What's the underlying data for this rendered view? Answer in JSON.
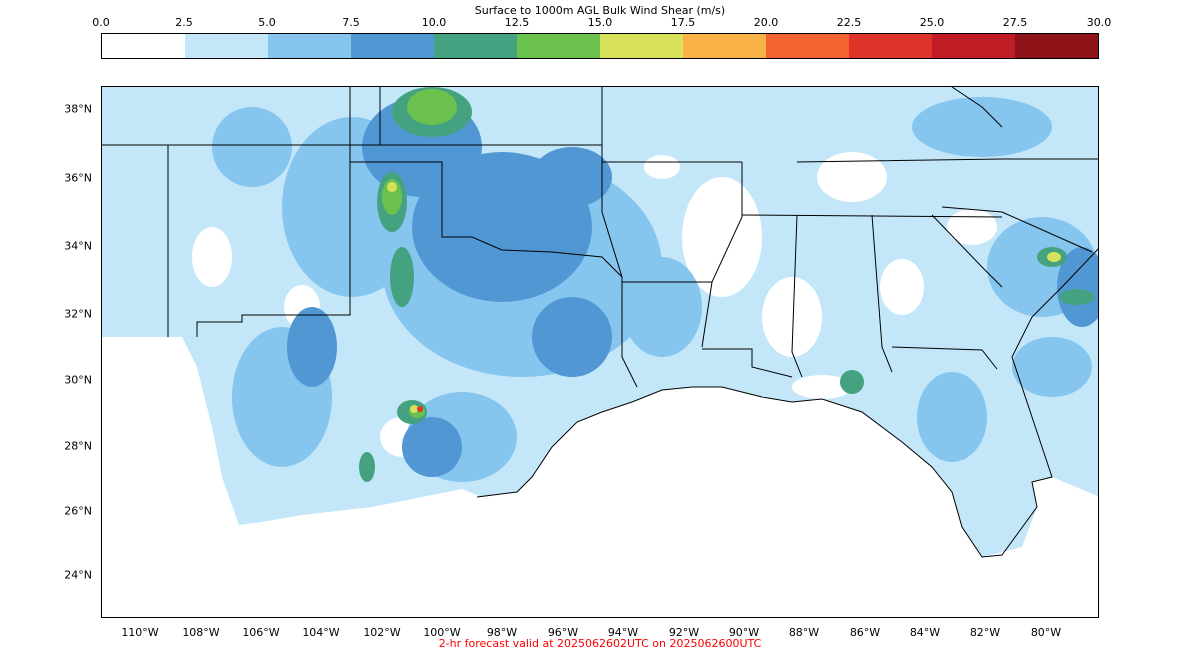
{
  "colorbar": {
    "title": "Surface to 1000m AGL Bulk Wind Shear (m/s)",
    "ticks": [
      "0.0",
      "2.5",
      "5.0",
      "7.5",
      "10.0",
      "12.5",
      "15.0",
      "17.5",
      "20.0",
      "22.5",
      "25.0",
      "27.5",
      "30.0"
    ],
    "colors": [
      "#ffffff",
      "#c3e7f9",
      "#85c5ee",
      "#5097d4",
      "#45a280",
      "#6ac14d",
      "#d8e15a",
      "#f8b246",
      "#f16430",
      "#de342a",
      "#bf1c26",
      "#8e1318"
    ]
  },
  "map": {
    "lat_labels": [
      "38°N",
      "36°N",
      "34°N",
      "32°N",
      "30°N",
      "28°N",
      "26°N",
      "24°N"
    ],
    "lon_labels": [
      "110°W",
      "108°W",
      "106°W",
      "104°W",
      "102°W",
      "100°W",
      "98°W",
      "96°W",
      "94°W",
      "92°W",
      "90°W",
      "88°W",
      "86°W",
      "84°W",
      "82°W",
      "80°W"
    ]
  },
  "footer": {
    "text": "2-hr forecast valid at 2025062602UTC on 2025062600UTC"
  }
}
